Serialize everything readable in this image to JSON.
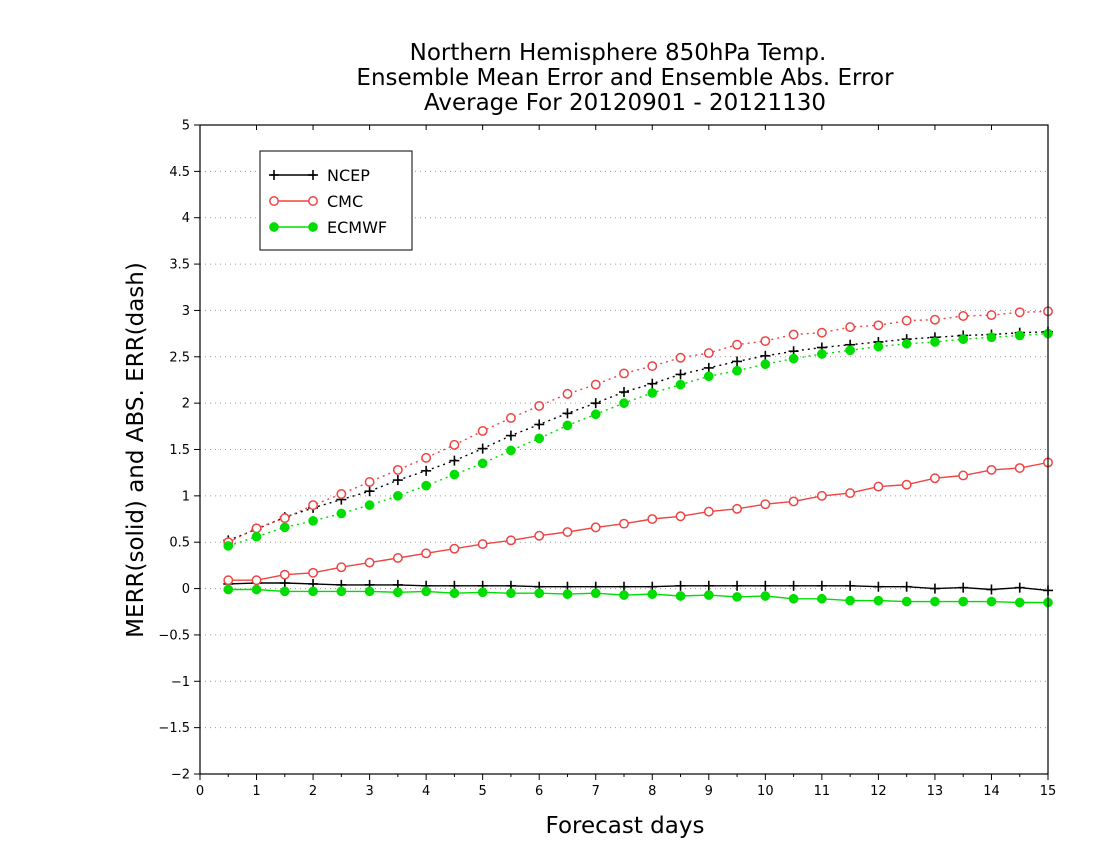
{
  "chart_data": {
    "type": "line",
    "title": [
      "Northern Hemisphere 850hPa Temp.",
      "Ensemble Mean Error and Ensemble Abs. Error",
      "Average For 20120901 - 20121130"
    ],
    "xlabel": "Forecast days",
    "ylabel": "MERR(solid) and ABS. ERR(dash)",
    "xlim": [
      0,
      15
    ],
    "ylim": [
      -2,
      5
    ],
    "xticks": [
      0,
      1,
      2,
      3,
      4,
      5,
      6,
      7,
      8,
      9,
      10,
      11,
      12,
      13,
      14,
      15
    ],
    "yticks": [
      -2,
      -1.5,
      -1,
      -0.5,
      0,
      0.5,
      1,
      1.5,
      2,
      2.5,
      3,
      3.5,
      4,
      4.5,
      5
    ],
    "grid": "horizontal dotted",
    "legend_position": "top-left",
    "x": [
      0.5,
      1,
      1.5,
      2,
      2.5,
      3,
      3.5,
      4,
      4.5,
      5,
      5.5,
      6,
      6.5,
      7,
      7.5,
      8,
      8.5,
      9,
      9.5,
      10,
      10.5,
      11,
      11.5,
      12,
      12.5,
      13,
      13.5,
      14,
      14.5,
      15
    ],
    "series": [
      {
        "name": "NCEP",
        "color": "#000000",
        "marker": "plus",
        "mean_error": [
          0.05,
          0.06,
          0.06,
          0.05,
          0.04,
          0.04,
          0.04,
          0.03,
          0.03,
          0.03,
          0.03,
          0.02,
          0.02,
          0.02,
          0.02,
          0.02,
          0.03,
          0.03,
          0.03,
          0.03,
          0.03,
          0.03,
          0.03,
          0.02,
          0.02,
          0.0,
          0.01,
          -0.01,
          0.01,
          -0.02
        ],
        "abs_error": [
          0.52,
          0.64,
          0.77,
          0.87,
          0.96,
          1.05,
          1.17,
          1.27,
          1.38,
          1.51,
          1.65,
          1.77,
          1.89,
          2.0,
          2.12,
          2.21,
          2.31,
          2.38,
          2.45,
          2.51,
          2.56,
          2.6,
          2.63,
          2.66,
          2.69,
          2.71,
          2.73,
          2.74,
          2.76,
          2.77
        ]
      },
      {
        "name": "CMC",
        "color": "#ee4444",
        "marker": "open-circle",
        "mean_error": [
          0.09,
          0.09,
          0.15,
          0.17,
          0.23,
          0.28,
          0.33,
          0.38,
          0.43,
          0.48,
          0.52,
          0.57,
          0.61,
          0.66,
          0.7,
          0.75,
          0.78,
          0.83,
          0.86,
          0.91,
          0.94,
          1.0,
          1.03,
          1.1,
          1.12,
          1.19,
          1.22,
          1.28,
          1.3,
          1.36
        ],
        "abs_error": [
          0.5,
          0.65,
          0.76,
          0.9,
          1.02,
          1.15,
          1.28,
          1.41,
          1.55,
          1.7,
          1.84,
          1.97,
          2.1,
          2.2,
          2.32,
          2.4,
          2.49,
          2.54,
          2.63,
          2.67,
          2.74,
          2.76,
          2.82,
          2.84,
          2.89,
          2.9,
          2.94,
          2.95,
          2.98,
          2.99
        ]
      },
      {
        "name": "ECMWF",
        "color": "#00dd00",
        "marker": "filled-circle",
        "mean_error": [
          -0.01,
          -0.01,
          -0.03,
          -0.03,
          -0.03,
          -0.03,
          -0.04,
          -0.03,
          -0.05,
          -0.04,
          -0.05,
          -0.05,
          -0.06,
          -0.05,
          -0.07,
          -0.06,
          -0.08,
          -0.07,
          -0.09,
          -0.08,
          -0.11,
          -0.11,
          -0.13,
          -0.13,
          -0.14,
          -0.14,
          -0.14,
          -0.14,
          -0.15,
          -0.15
        ],
        "abs_error": [
          0.46,
          0.56,
          0.66,
          0.73,
          0.81,
          0.9,
          1.0,
          1.11,
          1.23,
          1.35,
          1.49,
          1.62,
          1.76,
          1.88,
          2.0,
          2.11,
          2.2,
          2.29,
          2.35,
          2.42,
          2.48,
          2.53,
          2.57,
          2.61,
          2.64,
          2.66,
          2.69,
          2.71,
          2.73,
          2.75
        ]
      }
    ]
  }
}
